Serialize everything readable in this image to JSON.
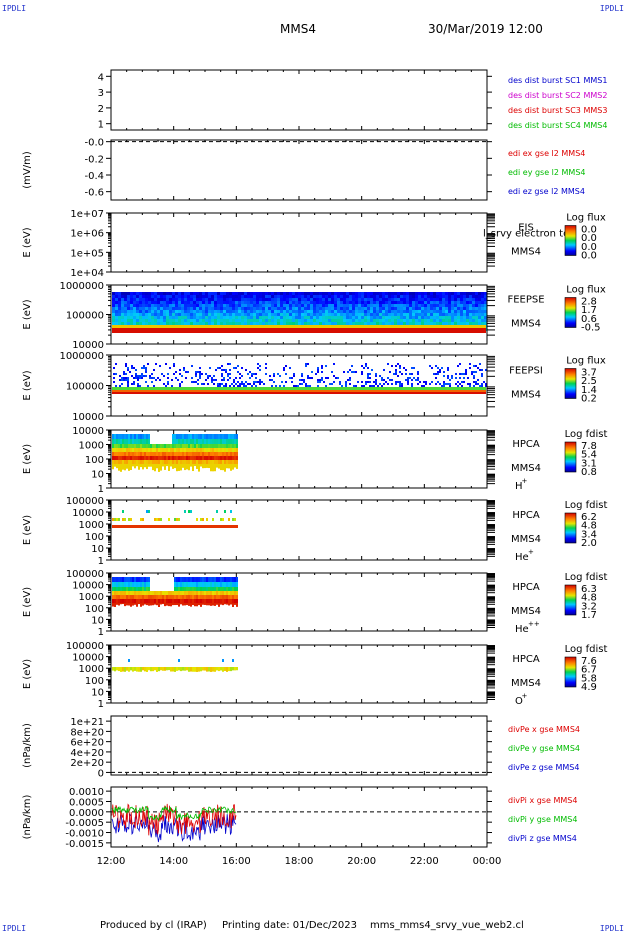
{
  "corner_label": "IPDLI",
  "header": {
    "spacecraft": "MMS4",
    "datetime": "30/Mar/2019 12:00"
  },
  "footer": {
    "produced_by": "Produced by cl (IRAP)",
    "printing_date": "Printing date: 01/Dec/2023",
    "file_name": "mms_mms4_srvy_vue_web2.cl"
  },
  "chart_data": [
    {
      "type": "line",
      "name": "panel-dist-burst",
      "yticks": [
        "4",
        "3",
        "2",
        "1"
      ],
      "ytick_vals": [
        4,
        3,
        2,
        1
      ],
      "ylim": [
        0.6,
        4.4
      ],
      "ylabel": "",
      "legend": [
        {
          "text": "des dist burst SC1 MMS1",
          "color": "#0000cc"
        },
        {
          "text": "des dist burst SC2 MMS2",
          "color": "#cc00cc"
        },
        {
          "text": "des dist burst SC3 MMS3",
          "color": "#dd0000"
        },
        {
          "text": "des dist burst SC4 MMS4",
          "color": "#00bb00"
        }
      ]
    },
    {
      "type": "line",
      "name": "panel-edi",
      "yticks": [
        "-0.0",
        "-0.2",
        "-0.4",
        "-0.6"
      ],
      "ytick_vals": [
        0,
        -0.2,
        -0.4,
        -0.6
      ],
      "ylim": [
        -0.7,
        0.02
      ],
      "ylabel": "(mV/m)",
      "zero_line": 0,
      "legend": [
        {
          "text": "edi ex gse l2 MMS4",
          "color": "#dd0000"
        },
        {
          "text": "edi ey gse l2 MMS4",
          "color": "#00bb00"
        },
        {
          "text": "edi ez gse l2 MMS4",
          "color": "#0000cc"
        }
      ]
    },
    {
      "type": "heatmap",
      "name": "panel-eis",
      "yticks": [
        "1e+07",
        "1e+06",
        "1e+05",
        "1e+04"
      ],
      "ylabel": "E (eV)",
      "instrument": [
        "EIS",
        "MMS4"
      ],
      "overlay_text": "l_srvy electron to",
      "colorbar": {
        "title": "Log flux",
        "ticks": [
          "0.0",
          "0.0",
          "0.0",
          "0.0"
        ]
      }
    },
    {
      "type": "heatmap",
      "name": "panel-feepse",
      "yticks": [
        "1000000",
        "100000",
        "10000"
      ],
      "ylabel": "E (eV)",
      "instrument": [
        "FEEPSE",
        "MMS4"
      ],
      "colorbar": {
        "title": "Log flux",
        "ticks": [
          "2.8",
          "1.7",
          "0.6",
          "-0.5"
        ]
      }
    },
    {
      "type": "heatmap",
      "name": "panel-feepsi",
      "yticks": [
        "1000000",
        "100000",
        "10000"
      ],
      "ylabel": "E (eV)",
      "instrument": [
        "FEEPSI",
        "MMS4"
      ],
      "colorbar": {
        "title": "Log flux",
        "ticks": [
          "3.7",
          "2.5",
          "1.4",
          "0.2"
        ]
      }
    },
    {
      "type": "heatmap",
      "name": "panel-hpca-h",
      "yticks": [
        "10000",
        "1000",
        "100",
        "10",
        "1"
      ],
      "ylabel": "E (eV)",
      "instrument": [
        "HPCA",
        "MMS4",
        "H",
        "+"
      ],
      "colorbar": {
        "title": "Log fdist",
        "ticks": [
          "7.8",
          "5.4",
          "3.1",
          "0.8"
        ]
      }
    },
    {
      "type": "heatmap",
      "name": "panel-hpca-he",
      "yticks": [
        "100000",
        "10000",
        "1000",
        "100",
        "10",
        "1"
      ],
      "ylabel": "E (eV)",
      "instrument": [
        "HPCA",
        "MMS4",
        "He",
        "+"
      ],
      "colorbar": {
        "title": "Log fdist",
        "ticks": [
          "6.2",
          "4.8",
          "3.4",
          "2.0"
        ]
      }
    },
    {
      "type": "heatmap",
      "name": "panel-hpca-hepp",
      "yticks": [
        "100000",
        "10000",
        "1000",
        "100",
        "10",
        "1"
      ],
      "ylabel": "E (eV)",
      "instrument": [
        "HPCA",
        "MMS4",
        "He",
        "++"
      ],
      "colorbar": {
        "title": "Log fdist",
        "ticks": [
          "6.3",
          "4.8",
          "3.2",
          "1.7"
        ]
      }
    },
    {
      "type": "heatmap",
      "name": "panel-hpca-o",
      "yticks": [
        "100000",
        "10000",
        "1000",
        "100",
        "10",
        "1"
      ],
      "ylabel": "E (eV)",
      "instrument": [
        "HPCA",
        "MMS4",
        "O",
        "+"
      ],
      "colorbar": {
        "title": "Log fdist",
        "ticks": [
          "7.6",
          "6.7",
          "5.8",
          "4.9"
        ]
      }
    },
    {
      "type": "line",
      "name": "panel-divpe",
      "yticks": [
        "1e+21",
        "8e+20",
        "6e+20",
        "4e+20",
        "2e+20",
        "0"
      ],
      "ytick_vals": [
        1.0,
        0.8,
        0.6,
        0.4,
        0.2,
        0
      ],
      "ylim": [
        -0.05,
        1.1
      ],
      "ylabel": "(nPa/km)",
      "zero_line": 0,
      "legend": [
        {
          "text": "divPe x gse MMS4",
          "color": "#dd0000"
        },
        {
          "text": "divPe y gse MMS4",
          "color": "#00bb00"
        },
        {
          "text": "divPe z gse MMS4",
          "color": "#0000cc"
        }
      ]
    },
    {
      "type": "line",
      "name": "panel-divpi",
      "yticks": [
        "0.0010",
        "0.0005",
        "0.0000",
        "-0.0005",
        "-0.0010",
        "-0.0015"
      ],
      "ytick_vals": [
        0.001,
        0.0005,
        0,
        -0.0005,
        -0.001,
        -0.0015
      ],
      "ylim": [
        -0.0017,
        0.0012
      ],
      "ylabel": "(nPa/km)",
      "zero_line": 0,
      "legend": [
        {
          "text": "divPi x gse MMS4",
          "color": "#dd0000"
        },
        {
          "text": "divPi y gse MMS4",
          "color": "#00bb00"
        },
        {
          "text": "divPi z gse MMS4",
          "color": "#0000cc"
        }
      ]
    }
  ],
  "x_axis": {
    "labels": [
      "12:00",
      "14:00",
      "16:00",
      "18:00",
      "20:00",
      "22:00",
      "00:00"
    ],
    "range_hours": [
      12,
      24
    ],
    "data_end_hour": 16.0
  }
}
